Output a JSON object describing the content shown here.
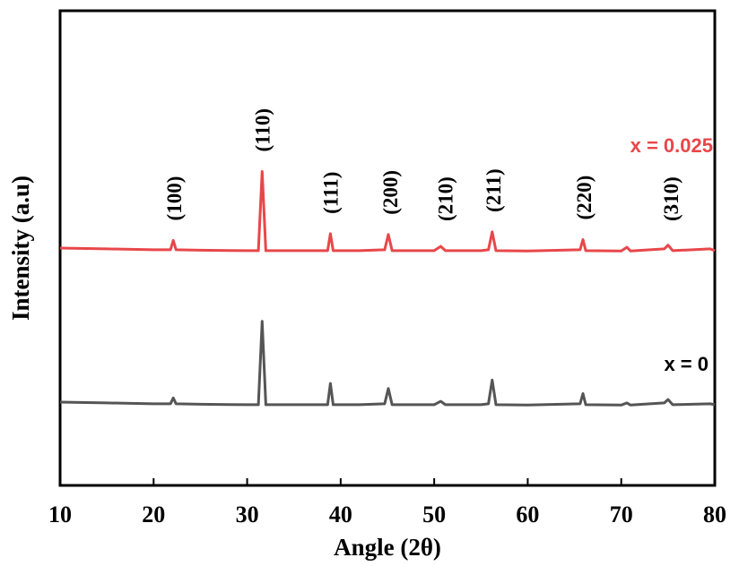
{
  "chart_data": {
    "type": "line",
    "xlabel": "Angle (2θ)",
    "ylabel": "Intensity (a.u)",
    "xlim": [
      10,
      80
    ],
    "xticks": [
      "10",
      "20",
      "30",
      "40",
      "50",
      "60",
      "70",
      "80"
    ],
    "grid": false,
    "series": [
      {
        "name": "x = 0.025",
        "color": "#e8474a",
        "x": [
          10,
          15,
          20,
          21.8,
          22.1,
          22.4,
          25,
          30,
          31.2,
          31.6,
          32.0,
          35,
          38.6,
          38.9,
          39.2,
          42,
          44.7,
          45.1,
          45.5,
          50,
          50.7,
          51.2,
          55,
          55.8,
          56.2,
          56.6,
          60,
          65.6,
          65.9,
          66.2,
          70,
          70.6,
          71,
          74.6,
          75,
          75.5,
          79.5,
          80
        ],
        "y": [
          0.0,
          -0.1,
          -0.2,
          -0.2,
          0.9,
          -0.2,
          -0.25,
          -0.3,
          -0.3,
          9.0,
          -0.3,
          -0.3,
          -0.3,
          1.7,
          -0.3,
          -0.3,
          -0.2,
          1.6,
          -0.3,
          -0.3,
          0.2,
          -0.3,
          -0.3,
          -0.2,
          1.9,
          -0.3,
          -0.35,
          -0.2,
          1.0,
          -0.3,
          -0.35,
          0.1,
          -0.35,
          -0.1,
          0.35,
          -0.3,
          -0.1,
          -0.3
        ]
      },
      {
        "name": "x = 0",
        "color": "#555555",
        "x": [
          10,
          15,
          20,
          21.8,
          22.1,
          22.4,
          25,
          30,
          31.2,
          31.6,
          32.0,
          35,
          38.6,
          38.9,
          39.2,
          42,
          44.7,
          45.1,
          45.5,
          50,
          50.7,
          51.2,
          55,
          55.8,
          56.2,
          56.6,
          60,
          65.6,
          65.9,
          66.2,
          70,
          70.6,
          71,
          74.6,
          75,
          75.5,
          79.5,
          80
        ],
        "y": [
          0.0,
          -0.1,
          -0.2,
          -0.2,
          0.5,
          -0.2,
          -0.25,
          -0.3,
          -0.3,
          9.5,
          -0.3,
          -0.3,
          -0.3,
          2.2,
          -0.3,
          -0.3,
          -0.2,
          1.6,
          -0.3,
          -0.3,
          0.1,
          -0.3,
          -0.3,
          -0.2,
          2.6,
          -0.3,
          -0.35,
          -0.2,
          1.0,
          -0.3,
          -0.35,
          -0.1,
          -0.35,
          -0.1,
          0.3,
          -0.3,
          -0.2,
          -0.3
        ]
      }
    ],
    "peak_labels": [
      {
        "x": 22.2,
        "text": "(100)"
      },
      {
        "x": 31.6,
        "text": "(110)"
      },
      {
        "x": 38.9,
        "text": "(111)"
      },
      {
        "x": 45.3,
        "text": "(200)"
      },
      {
        "x": 51.2,
        "text": "(210)"
      },
      {
        "x": 56.3,
        "text": "(211)"
      },
      {
        "x": 66.0,
        "text": "(220)"
      },
      {
        "x": 75.3,
        "text": "(310)"
      }
    ]
  }
}
